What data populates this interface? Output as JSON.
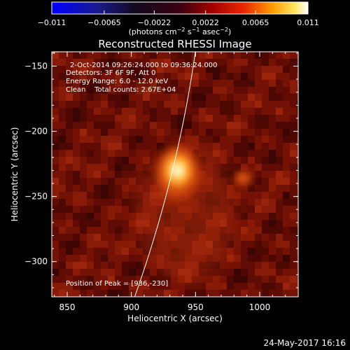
{
  "chart_data": {
    "type": "heatmap",
    "title": "Reconstructed RHESSI Image",
    "xlabel": "Heliocentric X (arcsec)",
    "ylabel": "Heliocentric Y (arcsec)",
    "xlim": [
      838,
      1030
    ],
    "ylim": [
      -327,
      -139
    ],
    "xticks": [
      850,
      900,
      950,
      1000
    ],
    "xtick_labels": [
      "850",
      "900",
      "950",
      "1000"
    ],
    "yticks": [
      -150,
      -200,
      -250,
      -300
    ],
    "ytick_labels": [
      "−150",
      "−200",
      "−250",
      "−300"
    ],
    "colorbar": {
      "colormap": "red-temperature (blue-black-red-yellow-white)",
      "range": [
        -0.011,
        0.011
      ],
      "ticks": [
        -0.011,
        -0.0065,
        -0.0022,
        0.0022,
        0.0065,
        0.011
      ],
      "tick_labels": [
        "−0.011",
        "−0.0065",
        "−0.0022",
        "0.0022",
        "0.0065",
        "0.011"
      ],
      "label_parts": [
        "(photons cm",
        "−2",
        " s",
        "−1",
        " asec",
        "−2",
        ")"
      ]
    },
    "annotations": [
      "2-Oct-2014 09:26:24.000 to 09:36:24.000",
      "Detectors: 3F 6F 9F, Att 0",
      "Energy Range: 6.0 - 12.0 keV",
      "Clean    Total counts: 2.67E+04"
    ],
    "peak_label": "Position of Peak = [936,-230]",
    "sources": [
      {
        "x": 936,
        "y": -230,
        "intensity": 0.011
      },
      {
        "x": 987,
        "y": -236,
        "intensity": 0.0035
      }
    ],
    "limb": {
      "center_x": 0,
      "center_y": 0,
      "radius": 960
    }
  },
  "footer": {
    "date": "24-May-2017 16:16"
  }
}
